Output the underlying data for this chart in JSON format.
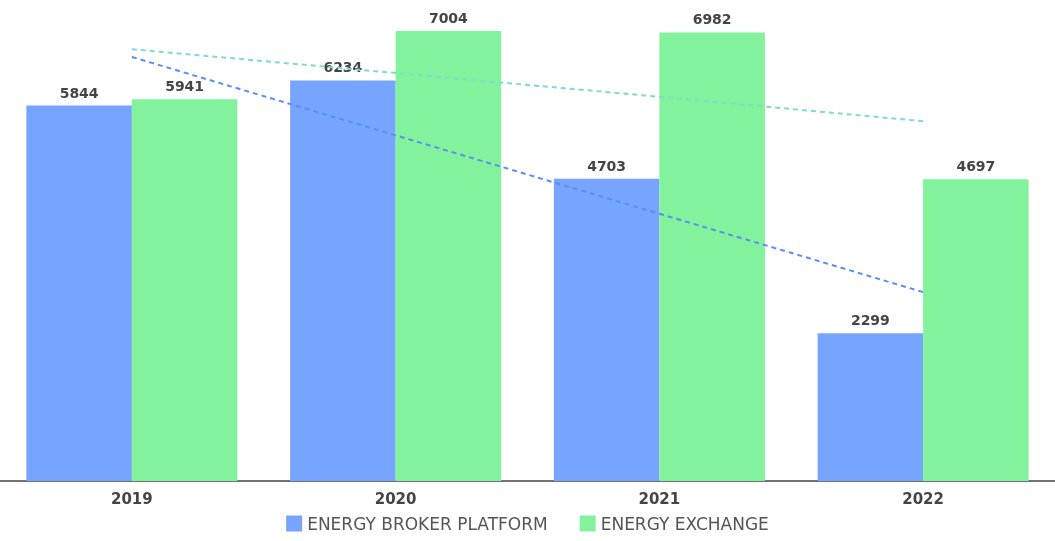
{
  "chart_data": {
    "type": "bar",
    "categories": [
      "2019",
      "2020",
      "2021",
      "2022"
    ],
    "series": [
      {
        "name": "ENERGY BROKER PLATFORM",
        "color": "#76a4ff",
        "values": [
          5844,
          6234,
          4703,
          2299
        ]
      },
      {
        "name": "ENERGY EXCHANGE",
        "color": "#82f39c",
        "values": [
          5941,
          7004,
          6982,
          4697
        ]
      },
      {
        "type": "line",
        "color": "#5b8ff0",
        "values": [
          6600,
          5380,
          4160,
          2940
        ],
        "value_labels": [
          null,
          null,
          null,
          null
        ],
        "line_style": "dashed",
        "marker": "none"
      },
      {
        "type": "line",
        "color": "#7fdcc8",
        "values": [
          6720,
          6350,
          5980,
          5600
        ],
        "value_labels": [
          null,
          null,
          null,
          null
        ],
        "line_style": "dashed",
        "marker": "none"
      }
    ],
    "data_labels": true,
    "legend": "bottom",
    "grid": false
  }
}
